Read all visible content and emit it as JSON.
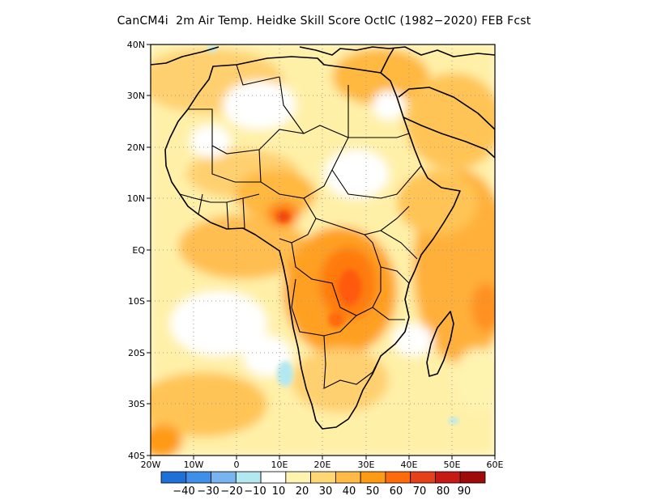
{
  "title": "CanCM4i  2m Air Temp. Heidke Skill Score OctIC (1982−2020) FEB Fcst",
  "map": {
    "lon_range": [
      -20,
      60
    ],
    "lat_range": [
      -40,
      40
    ],
    "lon_tick_labels": [
      "20W",
      "10W",
      "0",
      "10E",
      "20E",
      "30E",
      "40E",
      "50E",
      "60E"
    ],
    "lat_tick_labels": [
      "40N",
      "30N",
      "20N",
      "10N",
      "EQ",
      "10S",
      "20S",
      "30S",
      "40S"
    ],
    "grid_lines": "dotted",
    "background_color": "#ffffff",
    "coastline_color": "#000000"
  },
  "colorbar": {
    "labels": [
      "−40",
      "−30",
      "−20",
      "−10",
      "10",
      "20",
      "30",
      "40",
      "50",
      "60",
      "70",
      "80",
      "90"
    ],
    "colors": [
      "#1e6fd8",
      "#3f8fe8",
      "#78b4ef",
      "#b4e8f0",
      "#ffffff",
      "#fff3b0",
      "#ffd875",
      "#ffbb46",
      "#ff9a14",
      "#ff6a0a",
      "#e6401a",
      "#c81a14",
      "#a00a0a"
    ]
  }
}
